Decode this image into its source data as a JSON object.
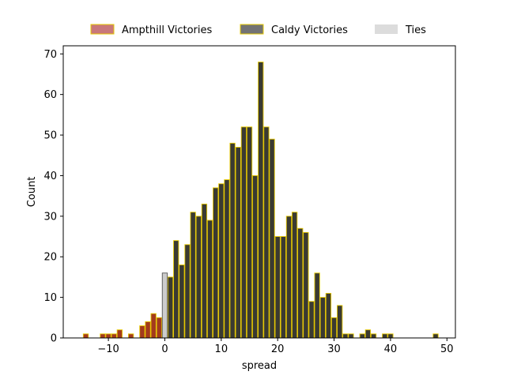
{
  "chart_data": {
    "type": "bar",
    "xlabel": "spread",
    "ylabel": "Count",
    "xlim": [
      -18,
      51.5
    ],
    "ylim": [
      0,
      72
    ],
    "x_ticks": [
      -10,
      0,
      10,
      20,
      30,
      40,
      50
    ],
    "y_ticks": [
      0,
      10,
      20,
      30,
      40,
      50,
      60,
      70
    ],
    "x_tick_labels": [
      "−10",
      "0",
      "10",
      "20",
      "30",
      "40",
      "50"
    ],
    "y_tick_labels": [
      "0",
      "10",
      "20",
      "30",
      "40",
      "50",
      "60",
      "70"
    ],
    "legend_position": "top-center, outside plot",
    "edge_color": "#e6c800",
    "series": [
      {
        "name": "Ampthill Victories",
        "color": "#a33a1e",
        "legend_color": "#c9787a",
        "x": [
          -14,
          -11,
          -10,
          -9,
          -8,
          -6,
          -4,
          -3,
          -2,
          -1
        ],
        "values": [
          1,
          1,
          1,
          1,
          2,
          1,
          3,
          4,
          6,
          5
        ]
      },
      {
        "name": "Caldy Victories",
        "color": "#3a3a32",
        "legend_color": "#737373",
        "x": [
          1,
          2,
          3,
          4,
          5,
          6,
          7,
          8,
          9,
          10,
          11,
          12,
          13,
          14,
          15,
          16,
          17,
          18,
          19,
          20,
          21,
          22,
          23,
          24,
          25,
          26,
          27,
          28,
          29,
          30,
          31,
          32,
          33,
          35,
          36,
          37,
          39,
          40,
          48
        ],
        "values": [
          15,
          24,
          18,
          23,
          31,
          30,
          33,
          29,
          37,
          38,
          39,
          48,
          47,
          52,
          52,
          40,
          68,
          52,
          49,
          25,
          25,
          30,
          31,
          27,
          26,
          9,
          16,
          10,
          11,
          5,
          8,
          1,
          1,
          1,
          2,
          1,
          1,
          1,
          1
        ]
      },
      {
        "name": "Ties",
        "color": "#cccccc",
        "legend_color": "#dcdcdc",
        "x": [
          0
        ],
        "values": [
          16
        ]
      }
    ]
  }
}
